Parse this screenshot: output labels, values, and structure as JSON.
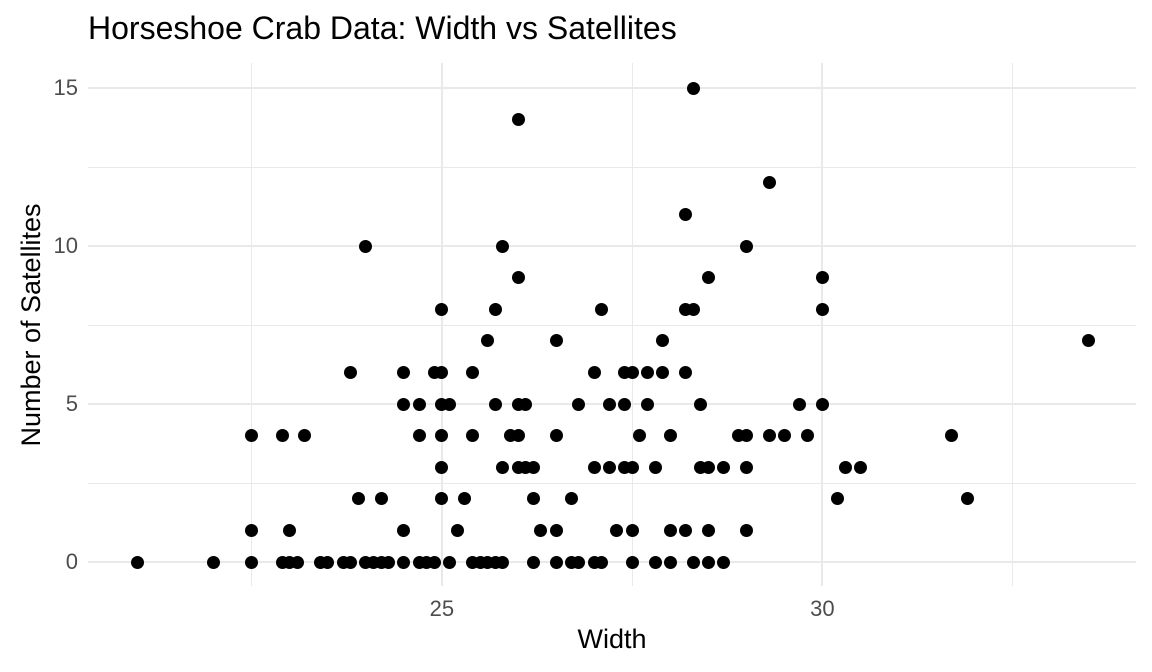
{
  "chart_data": {
    "type": "scatter",
    "title": "Horseshoe Crab Data: Width vs Satellites",
    "xlabel": "Width",
    "ylabel": "Number of Satellites",
    "xlim": [
      20.35,
      34.12
    ],
    "ylim": [
      -0.76,
      15.79
    ],
    "grid": true,
    "legend": "none",
    "x_ticks": [
      {
        "value": 25,
        "label": "25"
      },
      {
        "value": 30,
        "label": "30"
      }
    ],
    "y_ticks": [
      {
        "value": 0,
        "label": "0"
      },
      {
        "value": 5,
        "label": "5"
      },
      {
        "value": 10,
        "label": "10"
      },
      {
        "value": 15,
        "label": "15"
      }
    ],
    "x_minor_gridlines": [
      22.5,
      27.5,
      32.5
    ],
    "y_minor_gridlines": [
      2.5,
      7.5,
      12.5
    ],
    "point_color": "#000000",
    "title_color": "#000000",
    "axis_title_color": "#000000",
    "axis_text_color": "#4D4D4D",
    "grid_color": "#E9E9E9",
    "background_color": "#FFFFFF",
    "points_width_satellites": [
      [
        21.0,
        0
      ],
      [
        22.0,
        0
      ],
      [
        22.5,
        0
      ],
      [
        22.9,
        0
      ],
      [
        23.0,
        0
      ],
      [
        23.1,
        0
      ],
      [
        23.4,
        0
      ],
      [
        23.5,
        0
      ],
      [
        23.7,
        0
      ],
      [
        23.8,
        0
      ],
      [
        24.0,
        0
      ],
      [
        24.1,
        0
      ],
      [
        24.2,
        0
      ],
      [
        24.3,
        0
      ],
      [
        24.5,
        0
      ],
      [
        24.7,
        0
      ],
      [
        24.8,
        0
      ],
      [
        24.9,
        0
      ],
      [
        25.1,
        0
      ],
      [
        25.4,
        0
      ],
      [
        25.5,
        0
      ],
      [
        25.6,
        0
      ],
      [
        25.7,
        0
      ],
      [
        25.8,
        0
      ],
      [
        26.2,
        0
      ],
      [
        26.5,
        0
      ],
      [
        26.7,
        0
      ],
      [
        26.8,
        0
      ],
      [
        27.0,
        0
      ],
      [
        27.1,
        0
      ],
      [
        27.5,
        0
      ],
      [
        27.8,
        0
      ],
      [
        28.0,
        0
      ],
      [
        28.3,
        0
      ],
      [
        28.5,
        0
      ],
      [
        28.7,
        0
      ],
      [
        22.5,
        1
      ],
      [
        23.0,
        1
      ],
      [
        24.5,
        1
      ],
      [
        25.2,
        1
      ],
      [
        26.3,
        1
      ],
      [
        26.5,
        1
      ],
      [
        27.3,
        1
      ],
      [
        27.5,
        1
      ],
      [
        28.0,
        1
      ],
      [
        28.2,
        1
      ],
      [
        28.5,
        1
      ],
      [
        29.0,
        1
      ],
      [
        23.9,
        2
      ],
      [
        24.2,
        2
      ],
      [
        25.0,
        2
      ],
      [
        25.3,
        2
      ],
      [
        26.2,
        2
      ],
      [
        26.7,
        2
      ],
      [
        30.2,
        2
      ],
      [
        31.9,
        2
      ],
      [
        25.0,
        3
      ],
      [
        25.8,
        3
      ],
      [
        26.0,
        3
      ],
      [
        26.1,
        3
      ],
      [
        26.2,
        3
      ],
      [
        27.0,
        3
      ],
      [
        27.2,
        3
      ],
      [
        27.4,
        3
      ],
      [
        27.5,
        3
      ],
      [
        27.8,
        3
      ],
      [
        28.4,
        3
      ],
      [
        28.5,
        3
      ],
      [
        28.7,
        3
      ],
      [
        29.0,
        3
      ],
      [
        30.3,
        3
      ],
      [
        30.5,
        3
      ],
      [
        22.5,
        4
      ],
      [
        22.9,
        4
      ],
      [
        23.2,
        4
      ],
      [
        24.7,
        4
      ],
      [
        25.0,
        4
      ],
      [
        25.4,
        4
      ],
      [
        25.9,
        4
      ],
      [
        26.0,
        4
      ],
      [
        26.5,
        4
      ],
      [
        27.6,
        4
      ],
      [
        28.0,
        4
      ],
      [
        28.9,
        4
      ],
      [
        29.0,
        4
      ],
      [
        29.3,
        4
      ],
      [
        29.5,
        4
      ],
      [
        29.8,
        4
      ],
      [
        31.7,
        4
      ],
      [
        24.5,
        5
      ],
      [
        24.7,
        5
      ],
      [
        25.0,
        5
      ],
      [
        25.1,
        5
      ],
      [
        25.7,
        5
      ],
      [
        26.0,
        5
      ],
      [
        26.1,
        5
      ],
      [
        26.8,
        5
      ],
      [
        27.2,
        5
      ],
      [
        27.4,
        5
      ],
      [
        27.7,
        5
      ],
      [
        28.4,
        5
      ],
      [
        29.7,
        5
      ],
      [
        30.0,
        5
      ],
      [
        23.8,
        6
      ],
      [
        24.5,
        6
      ],
      [
        24.9,
        6
      ],
      [
        25.0,
        6
      ],
      [
        25.4,
        6
      ],
      [
        27.0,
        6
      ],
      [
        27.4,
        6
      ],
      [
        27.5,
        6
      ],
      [
        27.7,
        6
      ],
      [
        27.9,
        6
      ],
      [
        28.2,
        6
      ],
      [
        25.6,
        7
      ],
      [
        26.5,
        7
      ],
      [
        27.9,
        7
      ],
      [
        33.5,
        7
      ],
      [
        25.0,
        8
      ],
      [
        25.7,
        8
      ],
      [
        27.1,
        8
      ],
      [
        28.2,
        8
      ],
      [
        28.3,
        8
      ],
      [
        30.0,
        8
      ],
      [
        26.0,
        9
      ],
      [
        28.5,
        9
      ],
      [
        30.0,
        9
      ],
      [
        24.0,
        10
      ],
      [
        25.8,
        10
      ],
      [
        29.0,
        10
      ],
      [
        28.2,
        11
      ],
      [
        29.3,
        12
      ],
      [
        26.0,
        14
      ],
      [
        28.3,
        15
      ]
    ]
  }
}
